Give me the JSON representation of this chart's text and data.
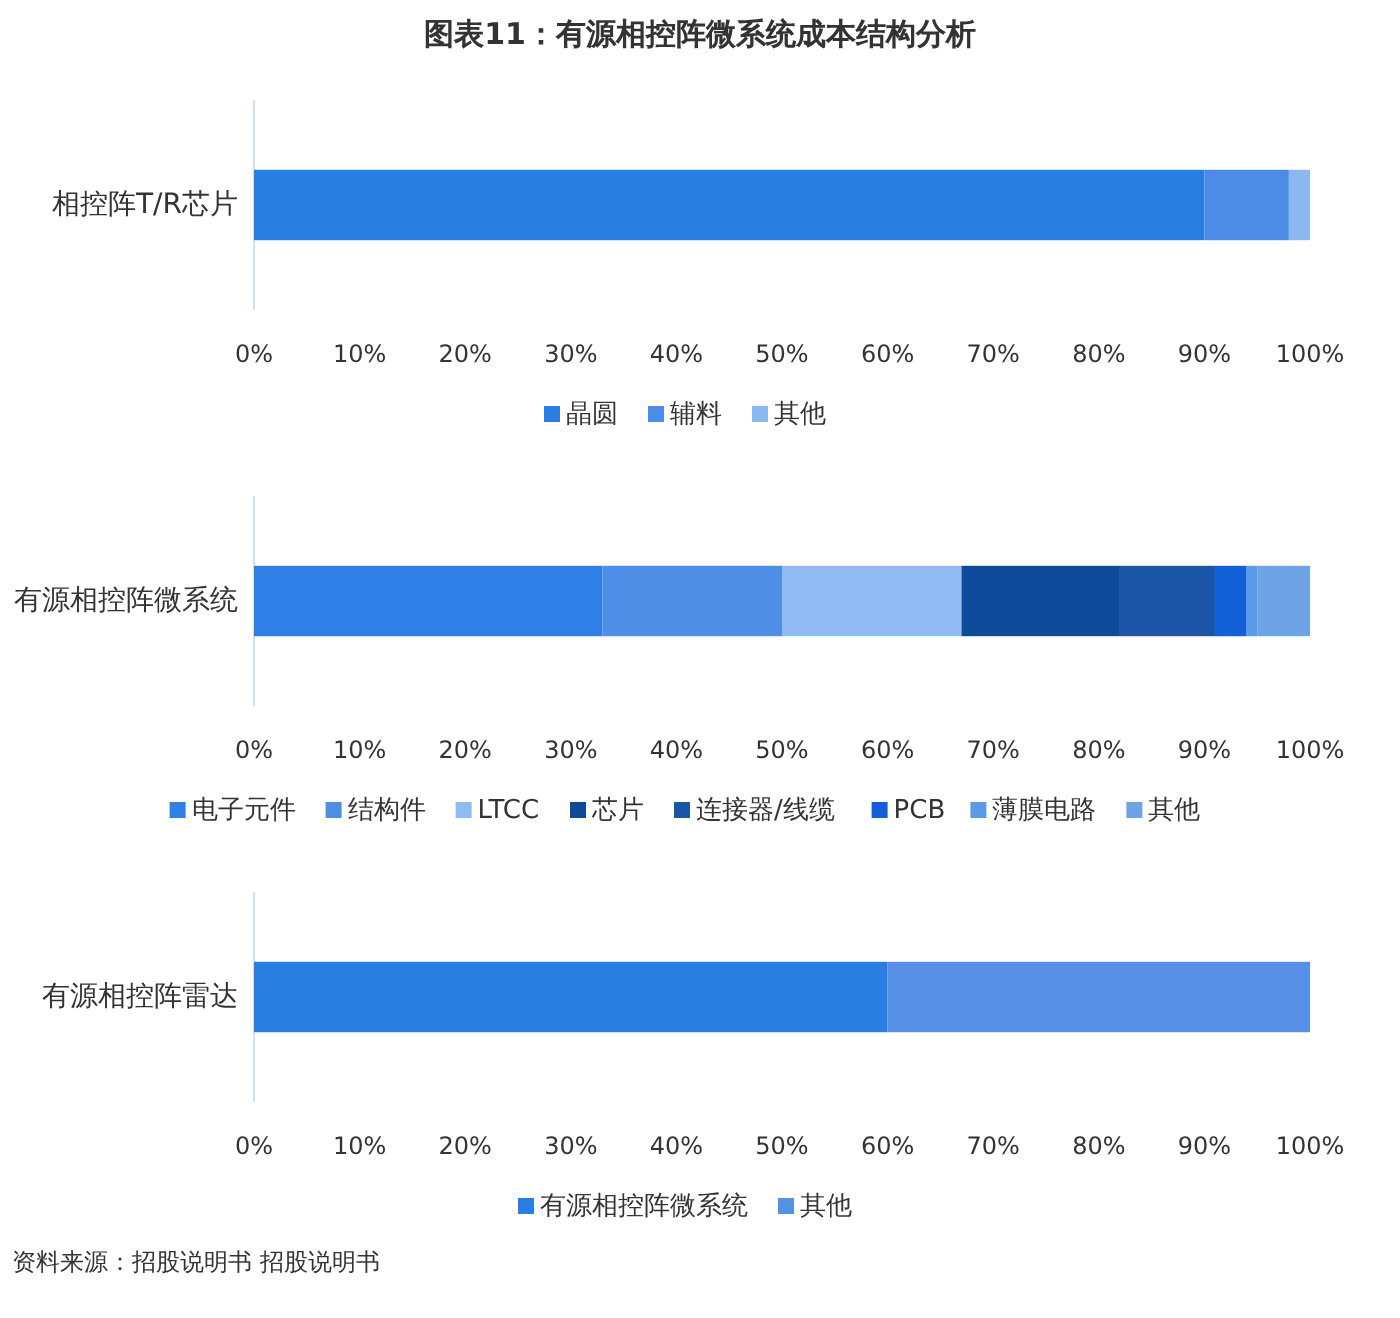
{
  "chart_data": [
    {
      "type": "bar",
      "orientation": "horizontal",
      "stacked": true,
      "title": "图表11：有源相控阵微系统成本结构分析",
      "categories": [
        "相控阵T/R芯片"
      ],
      "xlim": [
        0,
        100
      ],
      "xticks": [
        {
          "value": 0,
          "label": "0%"
        },
        {
          "value": 10,
          "label": "10%"
        },
        {
          "value": 20,
          "label": "20%"
        },
        {
          "value": 30,
          "label": "30%"
        },
        {
          "value": 40,
          "label": "40%"
        },
        {
          "value": 50,
          "label": "50%"
        },
        {
          "value": 60,
          "label": "60%"
        },
        {
          "value": 70,
          "label": "70%"
        },
        {
          "value": 80,
          "label": "80%"
        },
        {
          "value": 90,
          "label": "90%"
        },
        {
          "value": 100,
          "label": "100%"
        }
      ],
      "legend": "bottom",
      "series": [
        {
          "name": "晶圆",
          "color": "#2a7de1",
          "values": [
            90
          ]
        },
        {
          "name": "辅料",
          "color": "#4a8ce6",
          "values": [
            8
          ]
        },
        {
          "name": "其他",
          "color": "#8ab8f0",
          "values": [
            2
          ]
        }
      ]
    },
    {
      "type": "bar",
      "orientation": "horizontal",
      "stacked": true,
      "categories": [
        "有源相控阵微系统"
      ],
      "xlim": [
        0,
        100
      ],
      "xticks": [
        {
          "value": 0,
          "label": "0%"
        },
        {
          "value": 10,
          "label": "10%"
        },
        {
          "value": 20,
          "label": "20%"
        },
        {
          "value": 30,
          "label": "30%"
        },
        {
          "value": 40,
          "label": "40%"
        },
        {
          "value": 50,
          "label": "50%"
        },
        {
          "value": 60,
          "label": "60%"
        },
        {
          "value": 70,
          "label": "70%"
        },
        {
          "value": 80,
          "label": "80%"
        },
        {
          "value": 90,
          "label": "90%"
        },
        {
          "value": 100,
          "label": "100%"
        }
      ],
      "legend": "bottom",
      "series": [
        {
          "name": "电子元件",
          "color": "#2f80e6",
          "values": [
            33
          ]
        },
        {
          "name": "结构件",
          "color": "#4d8ee6",
          "values": [
            17
          ]
        },
        {
          "name": "LTCC",
          "color": "#8fbaf2",
          "values": [
            17
          ]
        },
        {
          "name": "芯片",
          "color": "#0e4a9a",
          "values": [
            15
          ]
        },
        {
          "name": "连接器/线缆",
          "color": "#1a55a8",
          "values": [
            9
          ]
        },
        {
          "name": "PCB",
          "color": "#1160d8",
          "values": [
            3
          ]
        },
        {
          "name": "薄膜电路",
          "color": "#5a9ae8",
          "values": [
            1
          ]
        },
        {
          "name": "其他",
          "color": "#6ea3e8",
          "values": [
            5
          ]
        }
      ]
    },
    {
      "type": "bar",
      "orientation": "horizontal",
      "stacked": true,
      "categories": [
        "有源相控阵雷达"
      ],
      "xlim": [
        0,
        100
      ],
      "xticks": [
        {
          "value": 0,
          "label": "0%"
        },
        {
          "value": 10,
          "label": "10%"
        },
        {
          "value": 20,
          "label": "20%"
        },
        {
          "value": 30,
          "label": "30%"
        },
        {
          "value": 40,
          "label": "40%"
        },
        {
          "value": 50,
          "label": "50%"
        },
        {
          "value": 60,
          "label": "60%"
        },
        {
          "value": 70,
          "label": "70%"
        },
        {
          "value": 80,
          "label": "80%"
        },
        {
          "value": 90,
          "label": "90%"
        },
        {
          "value": 100,
          "label": "100%"
        }
      ],
      "legend": "bottom",
      "annotations": [
        "资料来源：招股说明书 招股说明书"
      ],
      "series": [
        {
          "name": "有源相控阵微系统",
          "color": "#2a7de1",
          "values": [
            60
          ]
        },
        {
          "name": "其他",
          "color": "#5590e6",
          "values": [
            40
          ]
        }
      ]
    }
  ]
}
